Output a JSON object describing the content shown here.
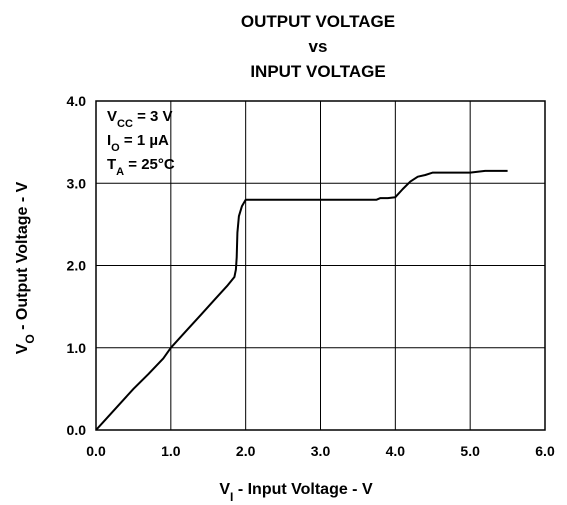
{
  "chart_data": {
    "type": "line",
    "title_lines": [
      "OUTPUT VOLTAGE",
      "vs",
      "INPUT VOLTAGE"
    ],
    "xlabel": {
      "main": "V",
      "sub": "I",
      "rest": " - Input Voltage - V"
    },
    "ylabel": {
      "main": "V",
      "sub": "O",
      "rest": " - Output Voltage - V"
    },
    "xlim": [
      0,
      6
    ],
    "ylim": [
      0,
      4
    ],
    "x_ticks": [
      "0.0",
      "1.0",
      "2.0",
      "3.0",
      "4.0",
      "5.0",
      "6.0"
    ],
    "y_ticks": [
      "0.0",
      "1.0",
      "2.0",
      "3.0",
      "4.0"
    ],
    "grid": true,
    "conditions": [
      {
        "main": "V",
        "sub": "CC",
        "rest": " = 3 V"
      },
      {
        "main": "I",
        "sub": "O",
        "rest": " = 1 µA"
      },
      {
        "main": "T",
        "sub": "A",
        "rest": " = 25°C"
      }
    ],
    "series": [
      {
        "color": "#000000",
        "x": [
          0.0,
          0.1,
          0.3,
          0.5,
          0.7,
          0.9,
          1.0,
          1.2,
          1.4,
          1.6,
          1.75,
          1.85,
          1.87,
          1.88,
          1.89,
          1.91,
          1.95,
          2.0,
          2.5,
          3.0,
          3.5,
          3.75,
          3.8,
          3.9,
          4.0,
          4.1,
          4.2,
          4.3,
          4.4,
          4.5,
          5.0,
          5.1,
          5.2,
          5.5
        ],
        "y": [
          0.0,
          0.1,
          0.3,
          0.5,
          0.68,
          0.87,
          1.0,
          1.2,
          1.4,
          1.6,
          1.75,
          1.86,
          1.95,
          2.1,
          2.4,
          2.6,
          2.72,
          2.8,
          2.8,
          2.8,
          2.8,
          2.8,
          2.82,
          2.82,
          2.83,
          2.93,
          3.02,
          3.08,
          3.1,
          3.13,
          3.13,
          3.14,
          3.15,
          3.15
        ]
      }
    ]
  }
}
